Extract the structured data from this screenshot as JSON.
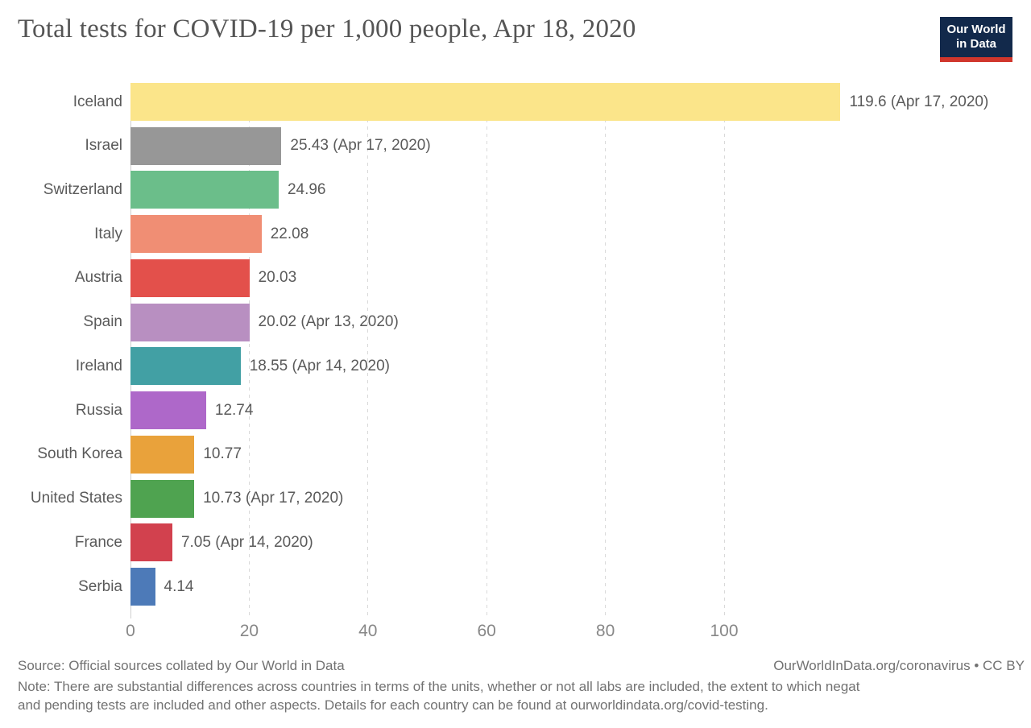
{
  "page": {
    "title": "Total tests for COVID-19 per 1,000 people, Apr 18, 2020",
    "logo": {
      "line1": "Our World",
      "line2": "in Data",
      "bg": "#12294b",
      "accent": "#d0362c"
    }
  },
  "chart_data": {
    "type": "bar",
    "orientation": "horizontal",
    "title": "Total tests for COVID-19 per 1,000 people, Apr 18, 2020",
    "categories": [
      "Iceland",
      "Israel",
      "Switzerland",
      "Italy",
      "Austria",
      "Spain",
      "Ireland",
      "Russia",
      "South Korea",
      "United States",
      "France",
      "Serbia"
    ],
    "values": [
      119.6,
      25.43,
      24.96,
      22.08,
      20.03,
      20.02,
      18.55,
      12.74,
      10.77,
      10.73,
      7.05,
      4.14
    ],
    "value_labels": [
      "119.6 (Apr 17, 2020)",
      "25.43 (Apr 17, 2020)",
      "24.96",
      "22.08",
      "20.03",
      "20.02 (Apr 13, 2020)",
      "18.55 (Apr 14, 2020)",
      "12.74",
      "10.77",
      "10.73 (Apr 17, 2020)",
      "7.05 (Apr 14, 2020)",
      "4.14"
    ],
    "colors": [
      "#fbe58a",
      "#979797",
      "#6bbe8a",
      "#f08e74",
      "#e3504b",
      "#b88fc1",
      "#42a0a4",
      "#ae68c9",
      "#e9a23b",
      "#4fa350",
      "#d2414e",
      "#4d7ab8"
    ],
    "x_ticks": [
      0,
      20,
      40,
      60,
      80,
      100
    ],
    "xlim": [
      0,
      152
    ],
    "grid": "dashed-vertical",
    "xlabel": "",
    "ylabel": ""
  },
  "footer": {
    "source_left": "Source: Official sources collated by Our World in Data",
    "source_right": "OurWorldInData.org/coronavirus • CC BY",
    "note_line1": "Note: There are substantial differences across countries in terms of the units, whether or not all labs are included, the extent to which negat",
    "note_line2": "and pending tests are included and other aspects. Details for each country can be found at ourworldindata.org/covid-testing."
  }
}
